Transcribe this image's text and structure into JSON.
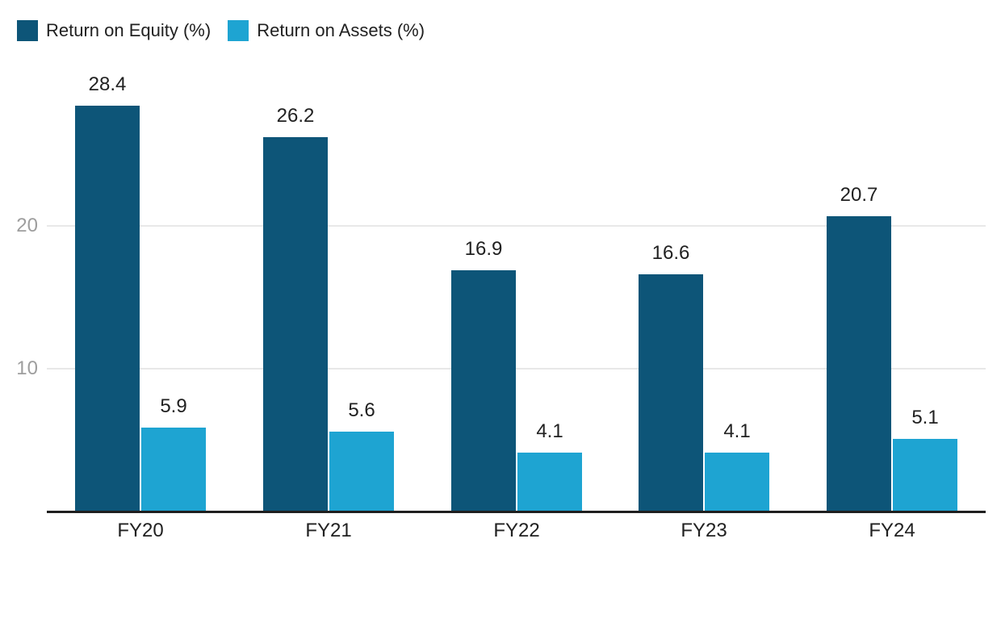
{
  "legend": {
    "items": [
      {
        "label": "Return on Equity (%)",
        "color": "#0d5578"
      },
      {
        "label": "Return on Assets (%)",
        "color": "#1ea4d2"
      }
    ]
  },
  "chart_data": {
    "type": "bar",
    "categories": [
      "FY20",
      "FY21",
      "FY22",
      "FY23",
      "FY24"
    ],
    "series": [
      {
        "name": "Return on Equity (%)",
        "color": "#0d5578",
        "values": [
          28.4,
          26.2,
          16.9,
          16.6,
          20.7
        ]
      },
      {
        "name": "Return on Assets (%)",
        "color": "#1ea4d2",
        "values": [
          5.9,
          5.6,
          4.1,
          4.1,
          5.1
        ]
      }
    ],
    "title": "",
    "xlabel": "",
    "ylabel": "",
    "ylim": [
      0,
      30
    ],
    "yticks": [
      10,
      20
    ],
    "grid": true,
    "legend_position": "top-left",
    "value_labels": true
  },
  "colors": {
    "background": "#ffffff",
    "axis_line": "#1f1f1f",
    "gridline": "#e8e8e8",
    "tick_label": "#9e9e9e",
    "value_label": "#212121"
  }
}
